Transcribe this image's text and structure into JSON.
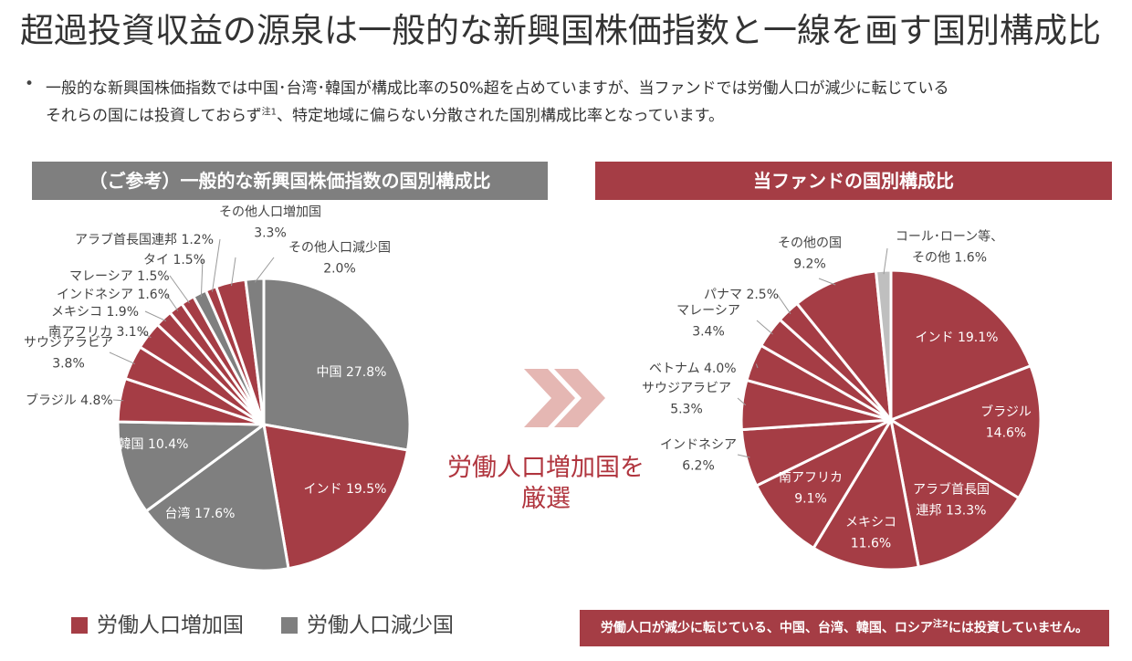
{
  "title": "超過投資収益の源泉は一般的な新興国株価指数と一線を画す国別構成比",
  "bullet": {
    "line1": "一般的な新興国株価指数では中国･台湾･韓国が構成比率の50%超を占めていますが、当ファンドでは労働人口が減少に転じている",
    "line2_part1": "それらの国には投資しておらず",
    "line2_sup": "注1",
    "line2_part2": "、特定地域に偏らない分散された国別構成比率となっています。"
  },
  "left_header": "（ご参考）一般的な新興国株価指数の国別構成比",
  "right_header": "当ファンドの国別構成比",
  "middle_caption": {
    "line1": "労働人口増加国を",
    "line2": "厳選"
  },
  "legend": {
    "increase": "労働人口増加国",
    "decrease": "労働人口減少国"
  },
  "note": {
    "part1": "労働人口が減少に転じている、中国、台湾、韓国、ロシア",
    "sup": "注2",
    "part2": "には投資していません。"
  },
  "colors": {
    "increase": "#a53d45",
    "decrease": "#7f7f7f",
    "cash": "#bfbfbf",
    "arrow": "#e5b7b3"
  },
  "chart_data": [
    {
      "type": "pie",
      "title": "（ご参考）一般的な新興国株価指数の国別構成比",
      "slices": [
        {
          "name": "中国",
          "value": 27.8,
          "group": "decrease"
        },
        {
          "name": "インド",
          "value": 19.5,
          "group": "increase"
        },
        {
          "name": "台湾",
          "value": 17.6,
          "group": "decrease"
        },
        {
          "name": "韓国",
          "value": 10.4,
          "group": "decrease"
        },
        {
          "name": "ブラジル",
          "value": 4.8,
          "group": "increase"
        },
        {
          "name": "サウジアラビア",
          "value": 3.8,
          "group": "increase"
        },
        {
          "name": "南アフリカ",
          "value": 3.1,
          "group": "increase"
        },
        {
          "name": "メキシコ",
          "value": 1.9,
          "group": "increase"
        },
        {
          "name": "インドネシア",
          "value": 1.6,
          "group": "increase"
        },
        {
          "name": "マレーシア",
          "value": 1.5,
          "group": "increase"
        },
        {
          "name": "タイ",
          "value": 1.5,
          "group": "decrease"
        },
        {
          "name": "アラブ首長国連邦",
          "value": 1.2,
          "group": "increase"
        },
        {
          "name": "その他人口増加国",
          "value": 3.3,
          "group": "increase"
        },
        {
          "name": "その他人口減少国",
          "value": 2.0,
          "group": "decrease"
        }
      ],
      "labels": [
        {
          "lines": [
            "中国 27.8%"
          ]
        },
        {
          "lines": [
            "インド 19.5%"
          ]
        },
        {
          "lines": [
            "台湾 17.6%"
          ]
        },
        {
          "lines": [
            "韓国 10.4%"
          ]
        },
        {
          "lines": [
            "ブラジル 4.8%"
          ]
        },
        {
          "lines": [
            "サウジアラビア",
            "3.8%"
          ]
        },
        {
          "lines": [
            "南アフリカ 3.1%"
          ]
        },
        {
          "lines": [
            "メキシコ 1.9%"
          ]
        },
        {
          "lines": [
            "インドネシア 1.6%"
          ]
        },
        {
          "lines": [
            "マレーシア 1.5%"
          ]
        },
        {
          "lines": [
            "タイ 1.5%"
          ]
        },
        {
          "lines": [
            "アラブ首長国連邦 1.2%"
          ]
        },
        {
          "lines": [
            "その他人口増加国",
            "3.3%"
          ]
        },
        {
          "lines": [
            "その他人口減少国",
            "2.0%"
          ]
        }
      ]
    },
    {
      "type": "pie",
      "title": "当ファンドの国別構成比",
      "slices": [
        {
          "name": "インド",
          "value": 19.1,
          "group": "increase"
        },
        {
          "name": "ブラジル",
          "value": 14.6,
          "group": "increase"
        },
        {
          "name": "アラブ首長国連邦",
          "value": 13.3,
          "group": "increase"
        },
        {
          "name": "メキシコ",
          "value": 11.6,
          "group": "increase"
        },
        {
          "name": "南アフリカ",
          "value": 9.1,
          "group": "increase"
        },
        {
          "name": "インドネシア",
          "value": 6.2,
          "group": "increase"
        },
        {
          "name": "サウジアラビア",
          "value": 5.3,
          "group": "increase"
        },
        {
          "name": "ベトナム",
          "value": 4.0,
          "group": "increase"
        },
        {
          "name": "マレーシア",
          "value": 3.4,
          "group": "increase"
        },
        {
          "name": "パナマ",
          "value": 2.5,
          "group": "increase"
        },
        {
          "name": "その他の国",
          "value": 9.2,
          "group": "increase"
        },
        {
          "name": "コール･ローン等、その他",
          "value": 1.6,
          "group": "cash"
        }
      ],
      "labels": [
        {
          "lines": [
            "インド 19.1%"
          ]
        },
        {
          "lines": [
            "ブラジル",
            "14.6%"
          ]
        },
        {
          "lines": [
            "アラブ首長国",
            "連邦 13.3%"
          ]
        },
        {
          "lines": [
            "メキシコ",
            "11.6%"
          ]
        },
        {
          "lines": [
            "南アフリカ",
            "9.1%"
          ]
        },
        {
          "lines": [
            "インドネシア",
            "6.2%"
          ]
        },
        {
          "lines": [
            "サウジアラビア",
            "5.3%"
          ]
        },
        {
          "lines": [
            "ベトナム 4.0%"
          ]
        },
        {
          "lines": [
            "マレーシア",
            "3.4%"
          ]
        },
        {
          "lines": [
            "パナマ 2.5%"
          ]
        },
        {
          "lines": [
            "その他の国",
            "9.2%"
          ]
        },
        {
          "lines": [
            "コール･ローン等、",
            "その他 1.6%"
          ]
        }
      ]
    }
  ]
}
